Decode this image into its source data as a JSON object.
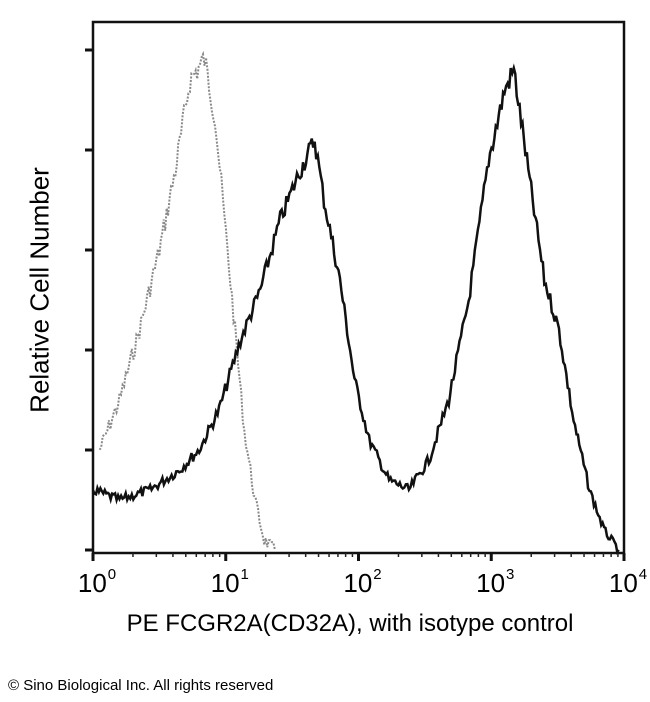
{
  "chart_data": {
    "type": "line",
    "title": "",
    "xlabel": "PE FCGR2A(CD32A), with isotype control",
    "ylabel": "Relative Cell Number",
    "x_scale": "log10",
    "xlim_log10": [
      0,
      4
    ],
    "ylim": [
      0,
      100
    ],
    "x_ticks": [
      {
        "base": "10",
        "exp": "0"
      },
      {
        "base": "10",
        "exp": "1"
      },
      {
        "base": "10",
        "exp": "2"
      },
      {
        "base": "10",
        "exp": "3"
      },
      {
        "base": "10",
        "exp": "4"
      }
    ],
    "y_tick_count": 6,
    "series": [
      {
        "name": "Isotype control",
        "color": "#8a8a8a",
        "x_log10": [
          0.05,
          0.2,
          0.35,
          0.5,
          0.62,
          0.73,
          0.84,
          0.92,
          0.99,
          1.07,
          1.14,
          1.22,
          1.29,
          1.37
        ],
        "values": [
          19.4,
          28.8,
          42,
          57,
          72,
          89,
          93,
          82,
          63,
          42,
          23,
          10,
          2.4,
          0.6
        ]
      },
      {
        "name": "PE FCGR2A(CD32A)",
        "color": "#111111",
        "x_log10": [
          0.0,
          0.2,
          0.43,
          0.65,
          0.8,
          0.95,
          1.11,
          1.26,
          1.41,
          1.56,
          1.67,
          1.74,
          1.86,
          1.97,
          2.08,
          2.23,
          2.38,
          2.53,
          2.68,
          2.83,
          2.98,
          3.1,
          3.17,
          3.29,
          3.4,
          3.51,
          3.62,
          3.74,
          3.85,
          3.96
        ],
        "values": [
          11.9,
          10,
          11.9,
          15.6,
          19.4,
          27,
          40,
          49.5,
          62.7,
          72,
          77.8,
          66.5,
          51.4,
          32.6,
          21.3,
          13.7,
          11.9,
          17.5,
          28.8,
          47.6,
          74,
          87,
          91,
          70,
          51.4,
          42,
          25,
          11.9,
          4.3,
          0.6
        ]
      }
    ]
  },
  "footer": {
    "copyright": "© Sino Biological Inc. All rights reserved"
  }
}
